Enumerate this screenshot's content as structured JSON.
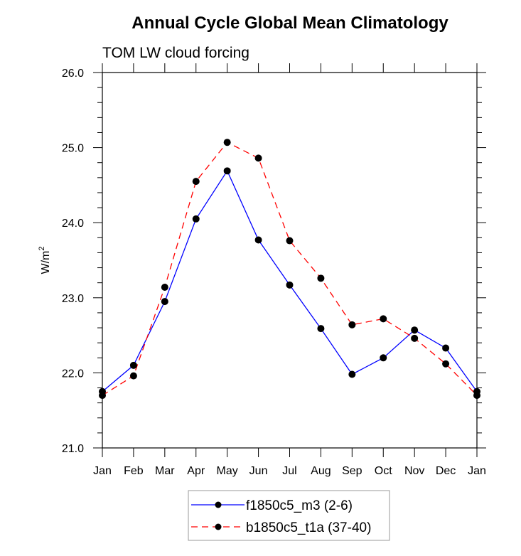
{
  "chart_data": {
    "type": "line",
    "title": "Annual Cycle Global Mean Climatology",
    "subtitle": "TOM LW cloud forcing",
    "xlabel": "",
    "ylabel": "W/m",
    "ylabel_superscript": "2",
    "categories": [
      "Jan",
      "Feb",
      "Mar",
      "Apr",
      "May",
      "Jun",
      "Jul",
      "Aug",
      "Sep",
      "Oct",
      "Nov",
      "Dec",
      "Jan"
    ],
    "ylim": [
      21.0,
      26.0
    ],
    "yticks": [
      21.0,
      22.0,
      23.0,
      24.0,
      25.0,
      26.0
    ],
    "ytick_labels": [
      "21.0",
      "22.0",
      "23.0",
      "24.0",
      "25.0",
      "26.0"
    ],
    "y_minor_step": 0.2,
    "grid": false,
    "legend_position": "bottom-center",
    "series": [
      {
        "name": "f1850c5_m3 (2-6)",
        "color": "#0000ff",
        "line_style": "solid",
        "marker": "filled-circle",
        "marker_color": "#000000",
        "values": [
          21.75,
          22.1,
          22.95,
          24.05,
          24.69,
          23.77,
          23.17,
          22.59,
          21.98,
          22.2,
          22.57,
          22.33,
          21.75
        ]
      },
      {
        "name": "b1850c5_t1a (37-40)",
        "color": "#ff0000",
        "line_style": "dashed",
        "marker": "filled-circle",
        "marker_color": "#000000",
        "values": [
          21.7,
          21.96,
          23.14,
          24.55,
          25.07,
          24.86,
          23.76,
          23.26,
          22.64,
          22.72,
          22.46,
          22.12,
          21.7
        ]
      }
    ]
  }
}
